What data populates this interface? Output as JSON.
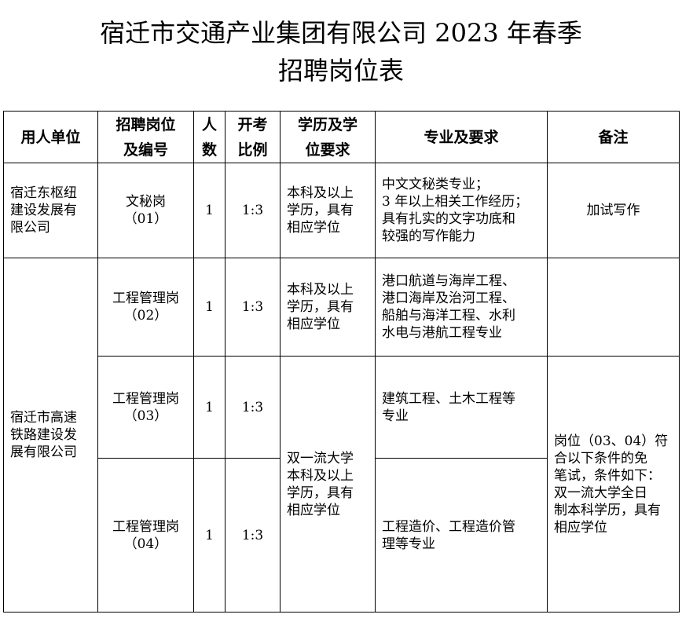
{
  "title": {
    "line1": "宿迁市交通产业集团有限公司 2023 年春季",
    "line2": "招聘岗位表"
  },
  "table": {
    "headers": [
      "用人单位",
      "招聘岗位\n及编号",
      "人\n数",
      "开考\n比例",
      "学历及学\n位要求",
      "专业及要求",
      "备注"
    ],
    "rows": [
      {
        "unit": "宿迁东枢纽\n建设发展有\n限公司",
        "position": "文秘岗\n（01）",
        "count": "1",
        "ratio": "1:3",
        "education": "本科及以上\n学历，具有\n相应学位",
        "major": "中文文秘类专业；\n3 年以上相关工作经历；\n具有扎实的文字功底和\n较强的写作能力",
        "remark": "加试写作"
      },
      {
        "unit": "宿迁市高速\n铁路建设发\n展有限公司",
        "position": "工程管理岗\n（02）",
        "count": "1",
        "ratio": "1:3",
        "education": "本科及以上\n学历，具有\n相应学位",
        "major": "港口航道与海岸工程、\n港口海岸及治河工程、\n船舶与海洋工程、水利\n水电与港航工程专业",
        "remark": ""
      },
      {
        "position": "工程管理岗\n（03）",
        "count": "1",
        "ratio": "1:3",
        "education": "双一流大学\n本科及以上\n学历，具有\n相应学位",
        "major": "建筑工程、土木工程等\n专业",
        "remark": "岗位（03、04）符\n合以下条件的免\n笔试，条件如下：\n双一流大学全日\n制本科学历，具有\n相应学位"
      },
      {
        "position": "工程管理岗\n（04）",
        "count": "1",
        "ratio": "1:3",
        "major": "工程造价、工程造价管\n理等专业"
      }
    ]
  }
}
